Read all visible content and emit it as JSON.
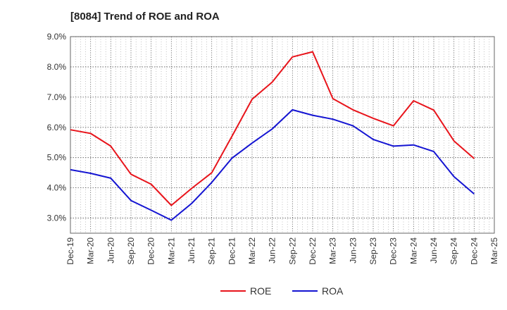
{
  "chart_data": {
    "type": "line",
    "title": "[8084]  Trend of ROE and ROA",
    "xlabel": "",
    "ylabel": "",
    "categories": [
      "Dec-19",
      "Mar-20",
      "Jun-20",
      "Sep-20",
      "Dec-20",
      "Mar-21",
      "Jun-21",
      "Sep-21",
      "Dec-21",
      "Mar-22",
      "Jun-22",
      "Sep-22",
      "Dec-22",
      "Mar-23",
      "Jun-23",
      "Sep-23",
      "Dec-23",
      "Mar-24",
      "Jun-24",
      "Sep-24",
      "Dec-24",
      "Mar-25"
    ],
    "y_ticks": [
      "3.0%",
      "4.0%",
      "5.0%",
      "6.0%",
      "7.0%",
      "8.0%",
      "9.0%"
    ],
    "ylim": [
      2.5,
      9.0
    ],
    "grid": true,
    "legend_position": "bottom",
    "series": [
      {
        "name": "ROE",
        "color": "#e8141b",
        "values": [
          5.92,
          5.8,
          5.38,
          4.45,
          4.12,
          3.42,
          3.98,
          4.5,
          5.7,
          6.93,
          7.5,
          8.33,
          8.5,
          6.95,
          6.58,
          6.3,
          6.05,
          6.88,
          6.57,
          5.55,
          4.97,
          null
        ]
      },
      {
        "name": "ROA",
        "color": "#1414d2",
        "values": [
          4.6,
          4.48,
          4.32,
          3.58,
          3.26,
          2.93,
          3.48,
          4.18,
          4.98,
          5.48,
          5.95,
          6.58,
          6.4,
          6.27,
          6.05,
          5.6,
          5.38,
          5.42,
          5.2,
          4.37,
          3.8,
          null
        ]
      }
    ]
  }
}
